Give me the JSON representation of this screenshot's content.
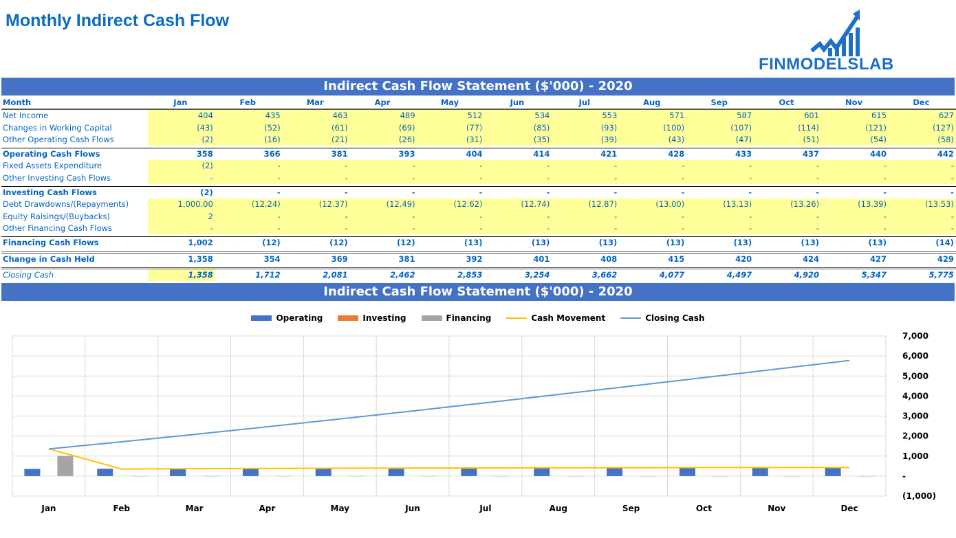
{
  "title": "Monthly Indirect Cash Flow",
  "logo": "FINMODELSLAB",
  "table_title": "Indirect Cash Flow Statement ($'000) - 2020",
  "chart_title": "Indirect Cash Flow Statement ($'000) - 2020",
  "header_label": "Month",
  "months": [
    "Jan",
    "Feb",
    "Mar",
    "Apr",
    "May",
    "Jun",
    "Jul",
    "Aug",
    "Sep",
    "Oct",
    "Nov",
    "Dec"
  ],
  "rows": [
    {
      "label": "Net Income",
      "style": "yel",
      "values": [
        "404",
        "435",
        "463",
        "489",
        "512",
        "534",
        "553",
        "571",
        "587",
        "601",
        "615",
        "627"
      ]
    },
    {
      "label": "Changes in Working Capital",
      "style": "yel",
      "values": [
        "(43)",
        "(52)",
        "(61)",
        "(69)",
        "(77)",
        "(85)",
        "(93)",
        "(100)",
        "(107)",
        "(114)",
        "(121)",
        "(127)"
      ]
    },
    {
      "label": "Other Operating Cash Flows",
      "style": "yel",
      "values": [
        "(2)",
        "(16)",
        "(21)",
        "(26)",
        "(31)",
        "(35)",
        "(39)",
        "(43)",
        "(47)",
        "(51)",
        "(54)",
        "(58)"
      ]
    },
    {
      "label": "Operating Cash Flows",
      "style": "bold tot",
      "values": [
        "358",
        "366",
        "381",
        "393",
        "404",
        "414",
        "421",
        "428",
        "433",
        "437",
        "440",
        "442"
      ]
    },
    {
      "label": "Fixed Assets Expenditure",
      "style": "yel",
      "values": [
        "(2)",
        "-",
        "-",
        "-",
        "-",
        "-",
        "-",
        "-",
        "-",
        "-",
        "-",
        "-"
      ]
    },
    {
      "label": "Other Investing Cash Flows",
      "style": "yel",
      "values": [
        "-",
        "-",
        "-",
        "-",
        "-",
        "-",
        "-",
        "-",
        "-",
        "-",
        "-",
        "-"
      ]
    },
    {
      "label": "Investing Cash Flows",
      "style": "bold tot",
      "values": [
        "(2)",
        "-",
        "-",
        "-",
        "-",
        "-",
        "-",
        "-",
        "-",
        "-",
        "-",
        "-"
      ]
    },
    {
      "label": "Debt Drawdowns/(Repayments)",
      "style": "yel",
      "values": [
        "1,000.00",
        "(12.24)",
        "(12.37)",
        "(12.49)",
        "(12.62)",
        "(12.74)",
        "(12.87)",
        "(13.00)",
        "(13.13)",
        "(13.26)",
        "(13.39)",
        "(13.53)"
      ]
    },
    {
      "label": "Equity Raisings/(Buybacks)",
      "style": "yel",
      "values": [
        "2",
        "-",
        "-",
        "-",
        "-",
        "-",
        "-",
        "-",
        "-",
        "-",
        "-",
        "-"
      ]
    },
    {
      "label": "Other Financing Cash Flows",
      "style": "yel",
      "values": [
        "-",
        "-",
        "-",
        "-",
        "-",
        "-",
        "-",
        "-",
        "-",
        "-",
        "-",
        "-"
      ]
    },
    {
      "label": "Financing Cash Flows",
      "style": "bold tot",
      "values": [
        "1,002",
        "(12)",
        "(12)",
        "(12)",
        "(13)",
        "(13)",
        "(13)",
        "(13)",
        "(13)",
        "(13)",
        "(13)",
        "(14)"
      ]
    },
    {
      "label": "Change in Cash Held",
      "style": "bold dbl",
      "values": [
        "1,358",
        "354",
        "369",
        "381",
        "392",
        "401",
        "408",
        "415",
        "420",
        "424",
        "427",
        "429"
      ]
    },
    {
      "label": "Closing Cash",
      "style": "ital dbl",
      "values": [
        "1,358",
        "1,712",
        "2,081",
        "2,462",
        "2,853",
        "3,254",
        "3,662",
        "4,077",
        "4,497",
        "4,920",
        "5,347",
        "5,775"
      ]
    }
  ],
  "chart_data": {
    "type": "bar",
    "categories": [
      "Jan",
      "Feb",
      "Mar",
      "Apr",
      "May",
      "Jun",
      "Jul",
      "Aug",
      "Sep",
      "Oct",
      "Nov",
      "Dec"
    ],
    "series": [
      {
        "name": "Operating",
        "kind": "bar",
        "color": "#4472c4",
        "values": [
          358,
          366,
          381,
          393,
          404,
          414,
          421,
          428,
          433,
          437,
          440,
          442
        ]
      },
      {
        "name": "Investing",
        "kind": "bar",
        "color": "#ed7d31",
        "values": [
          -2,
          0,
          0,
          0,
          0,
          0,
          0,
          0,
          0,
          0,
          0,
          0
        ]
      },
      {
        "name": "Financing",
        "kind": "bar",
        "color": "#a5a5a5",
        "values": [
          1002,
          -12,
          -12,
          -12,
          -13,
          -13,
          -13,
          -13,
          -13,
          -13,
          -13,
          -14
        ]
      },
      {
        "name": "Cash Movement",
        "kind": "line",
        "color": "#ffc000",
        "values": [
          1358,
          354,
          369,
          381,
          392,
          401,
          408,
          415,
          420,
          424,
          427,
          429
        ]
      },
      {
        "name": "Closing Cash",
        "kind": "line",
        "color": "#5b9bd5",
        "values": [
          1358,
          1712,
          2081,
          2462,
          2853,
          3254,
          3662,
          4077,
          4497,
          4920,
          5347,
          5775
        ]
      }
    ],
    "yticks": [
      "7,000",
      "6,000",
      "5,000",
      "4,000",
      "3,000",
      "2,000",
      "1,000",
      "-",
      "(1,000)"
    ],
    "ylim": [
      -1000,
      7000
    ],
    "legend": "top"
  }
}
